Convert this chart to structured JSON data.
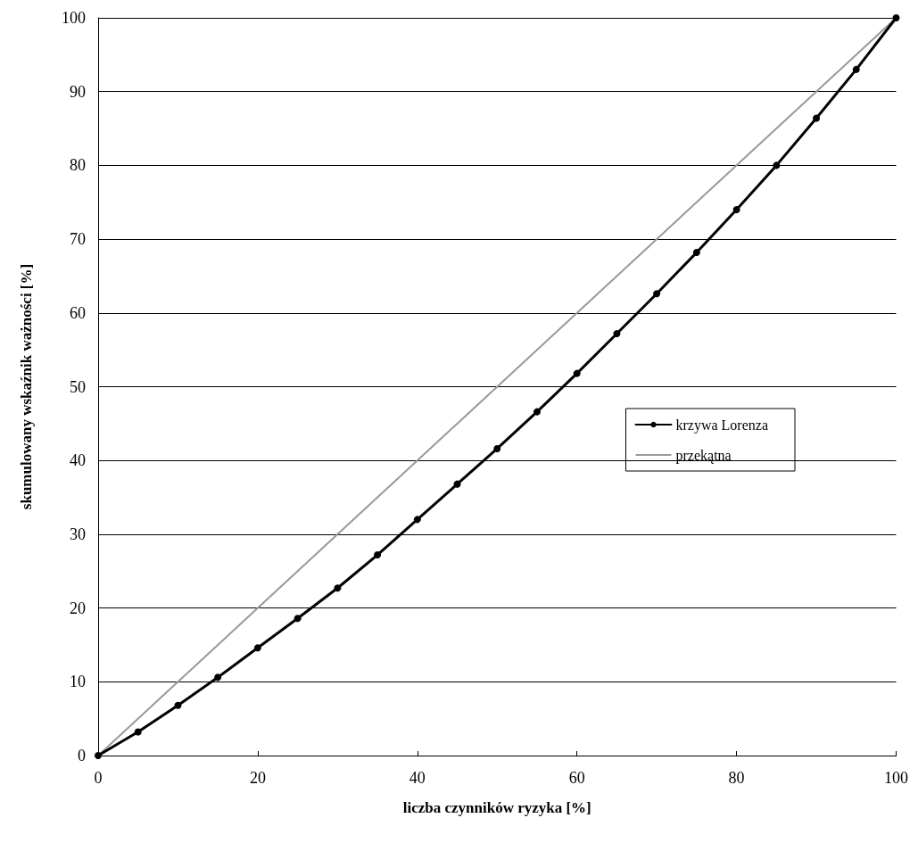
{
  "chart_data": {
    "type": "line",
    "xlabel": "liczba czynników ryzyka [%]",
    "ylabel": "skumulowany wskaźnik ważności [%]",
    "xlim": [
      0,
      100
    ],
    "xticks": [
      0,
      20,
      40,
      60,
      80,
      100
    ],
    "ylim": [
      0,
      100
    ],
    "yticks": [
      0,
      10,
      20,
      30,
      40,
      50,
      60,
      70,
      80,
      90,
      100
    ],
    "grid": "y",
    "legend": "right",
    "series": [
      {
        "name": "krzywa Lorenza",
        "color": "#000000",
        "marker": "circle",
        "x": [
          0,
          5,
          10,
          15,
          20,
          25,
          30,
          35,
          40,
          45,
          50,
          55,
          60,
          65,
          70,
          75,
          80,
          85,
          90,
          95,
          100
        ],
        "values": [
          0,
          3.2,
          6.8,
          10.6,
          14.6,
          18.6,
          22.7,
          27.2,
          32,
          36.8,
          41.6,
          46.6,
          51.8,
          57.2,
          62.6,
          68.2,
          74,
          80,
          86.4,
          93,
          100
        ]
      },
      {
        "name": "przekątna",
        "color": "#999999",
        "marker": "none",
        "x": [
          0,
          100
        ],
        "values": [
          0,
          100
        ]
      }
    ]
  }
}
